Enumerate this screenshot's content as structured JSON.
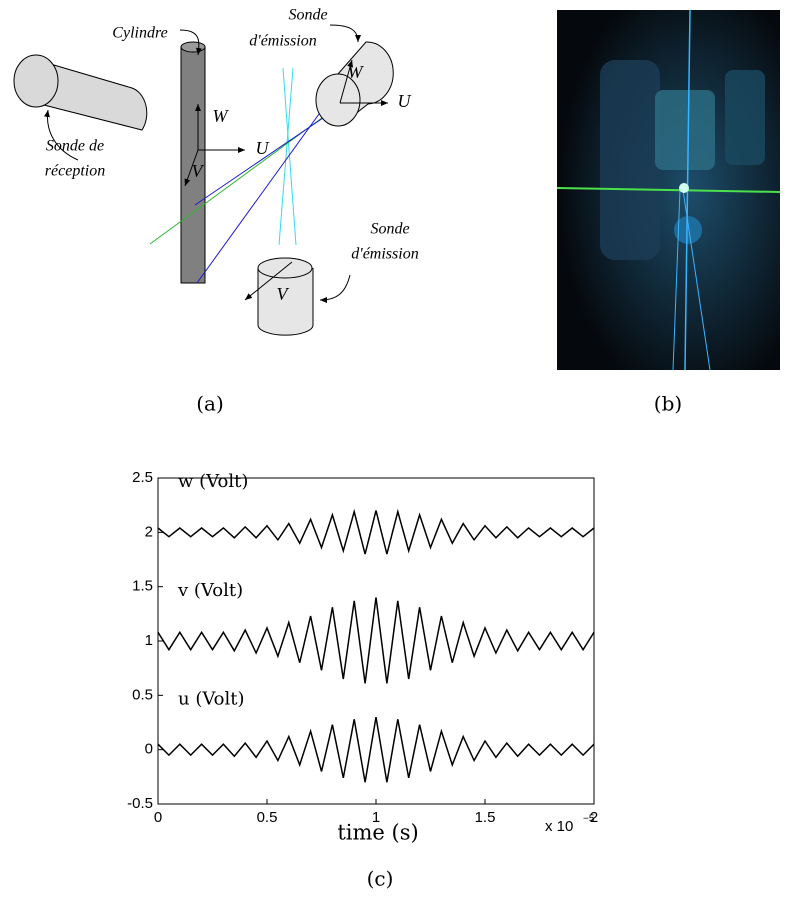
{
  "diagram": {
    "reception_probe": [
      "Sonde de",
      "réception"
    ],
    "cylinder": "Cylindre",
    "emission_probe_top": [
      "Sonde",
      "d'émission"
    ],
    "emission_probe_bottom": [
      "Sonde",
      "d'émission"
    ],
    "cylinder_axes": [
      "W",
      "U",
      "V"
    ],
    "top_probe_axes": [
      "W",
      "U"
    ],
    "bottom_probe_axes": [
      "V"
    ],
    "caption": "(a)"
  },
  "photo": {
    "caption": "(b)"
  },
  "chart_data": {
    "type": "line",
    "x": [
      0,
      0.05,
      0.1,
      0.15,
      0.2,
      0.25,
      0.3,
      0.35,
      0.4,
      0.45,
      0.5,
      0.55,
      0.6,
      0.65,
      0.7,
      0.75,
      0.8,
      0.85,
      0.9,
      0.95,
      1,
      1.05,
      1.1,
      1.15,
      1.2,
      1.25,
      1.3,
      1.35,
      1.4,
      1.45,
      1.5,
      1.55,
      1.6,
      1.65,
      1.7,
      1.75,
      1.8,
      1.85,
      1.9,
      1.95,
      2
    ],
    "series": [
      {
        "name": "w (Volt)",
        "color": "#000000",
        "values": [
          2.04,
          1.96,
          2.04,
          1.96,
          2.04,
          1.96,
          2.04,
          1.95,
          2.05,
          1.95,
          2.06,
          1.93,
          2.08,
          1.9,
          2.12,
          1.86,
          2.16,
          1.83,
          2.19,
          1.8,
          2.2,
          1.8,
          2.19,
          1.83,
          2.16,
          1.86,
          2.12,
          1.9,
          2.08,
          1.93,
          2.06,
          1.95,
          2.05,
          1.95,
          2.04,
          1.96,
          2.04,
          1.96,
          2.04,
          1.96,
          2.04
        ]
      },
      {
        "name": "v (Volt)",
        "color": "#000000",
        "values": [
          1.08,
          0.92,
          1.08,
          0.92,
          1.08,
          0.92,
          1.08,
          0.91,
          1.1,
          0.89,
          1.12,
          0.86,
          1.17,
          0.8,
          1.23,
          0.73,
          1.31,
          0.65,
          1.37,
          0.61,
          1.4,
          0.61,
          1.37,
          0.65,
          1.31,
          0.73,
          1.23,
          0.8,
          1.17,
          0.86,
          1.12,
          0.89,
          1.1,
          0.91,
          1.08,
          0.92,
          1.08,
          0.92,
          1.08,
          0.92,
          1.08
        ]
      },
      {
        "name": "u (Volt)",
        "color": "#000000",
        "values": [
          0.05,
          -0.05,
          0.05,
          -0.05,
          0.05,
          -0.05,
          0.05,
          -0.06,
          0.06,
          -0.07,
          0.08,
          -0.1,
          0.12,
          -0.14,
          0.17,
          -0.2,
          0.23,
          -0.26,
          0.28,
          -0.3,
          0.3,
          -0.3,
          0.28,
          -0.26,
          0.23,
          -0.2,
          0.17,
          -0.14,
          0.12,
          -0.1,
          0.08,
          -0.07,
          0.06,
          -0.06,
          0.05,
          -0.05,
          0.05,
          -0.05,
          0.05,
          -0.05,
          0.05
        ]
      }
    ],
    "xlim": [
      0,
      2
    ],
    "xticks": [
      0,
      0.5,
      1,
      1.5,
      2
    ],
    "ylim": [
      -0.5,
      2.5
    ],
    "yticks": [
      -0.5,
      0,
      0.5,
      1,
      1.5,
      2,
      2.5
    ],
    "xlabel": "time (s)",
    "x_scale": "x 10",
    "x_scale_exponent": "−5",
    "grid": false,
    "caption": "(c)"
  }
}
